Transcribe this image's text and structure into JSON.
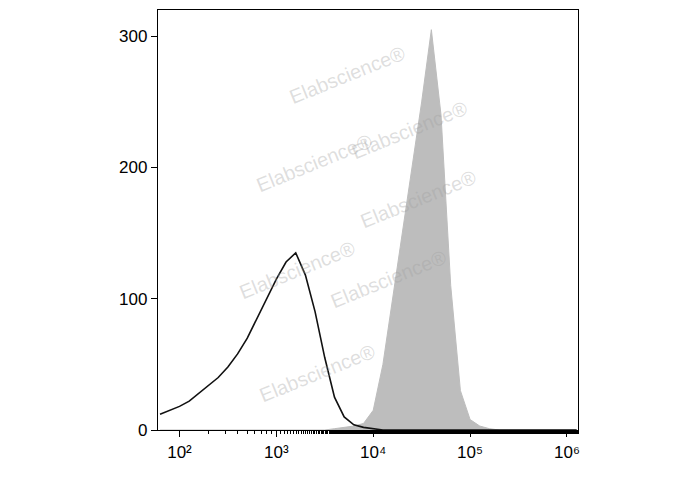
{
  "chart_data": {
    "type": "line",
    "log": "x",
    "grid": false,
    "x": [
      63,
      79,
      100,
      126,
      158,
      200,
      251,
      316,
      398,
      501,
      631,
      794,
      1000,
      1259,
      1585,
      1995,
      2512,
      3162,
      3981,
      5012,
      6310,
      7943,
      10000,
      12589,
      15849,
      19953,
      25119,
      31623,
      39811,
      50119,
      63096,
      79433,
      100000,
      125893,
      158489,
      199526,
      251189,
      316228,
      398107,
      501187,
      630957,
      794328,
      1000000,
      1258925
    ],
    "series": [
      {
        "type": "area",
        "color": "#bdbdbd",
        "values": [
          0,
          0,
          0,
          0,
          0,
          0,
          0,
          0,
          0,
          0,
          0,
          0,
          0,
          0,
          0,
          0,
          0,
          0,
          1,
          2,
          3,
          5,
          15,
          50,
          100,
          150,
          200,
          250,
          305,
          240,
          110,
          30,
          8,
          3,
          1,
          0,
          0,
          0,
          0,
          0,
          0,
          0,
          0,
          0
        ]
      },
      {
        "type": "line",
        "color": "#111111",
        "values": [
          12,
          15,
          18,
          22,
          28,
          34,
          40,
          48,
          58,
          70,
          85,
          100,
          115,
          128,
          135,
          118,
          90,
          55,
          25,
          10,
          4,
          2,
          1,
          0,
          0,
          0,
          0,
          0,
          0,
          0,
          0,
          0,
          0,
          0,
          0,
          0,
          0,
          0,
          0,
          0,
          0,
          0,
          0,
          0
        ]
      }
    ],
    "xlim": [
      60,
      1300000
    ],
    "xticks": [
      {
        "value": 100,
        "label": "10²"
      },
      {
        "value": 1000,
        "label": "10³"
      },
      {
        "value": 10000,
        "label": "10⁴"
      },
      {
        "value": 100000,
        "label": "10⁵"
      },
      {
        "value": 1000000,
        "label": "10⁶"
      }
    ],
    "ylim": [
      0,
      320
    ],
    "yticks": [
      0,
      100,
      200,
      300
    ],
    "annotations": [
      "Elabscience®",
      "Elabscience®",
      "Elabscience®",
      "Elabscience®",
      "Elabscience®",
      "Elabscience®",
      "Elabscience®"
    ]
  }
}
